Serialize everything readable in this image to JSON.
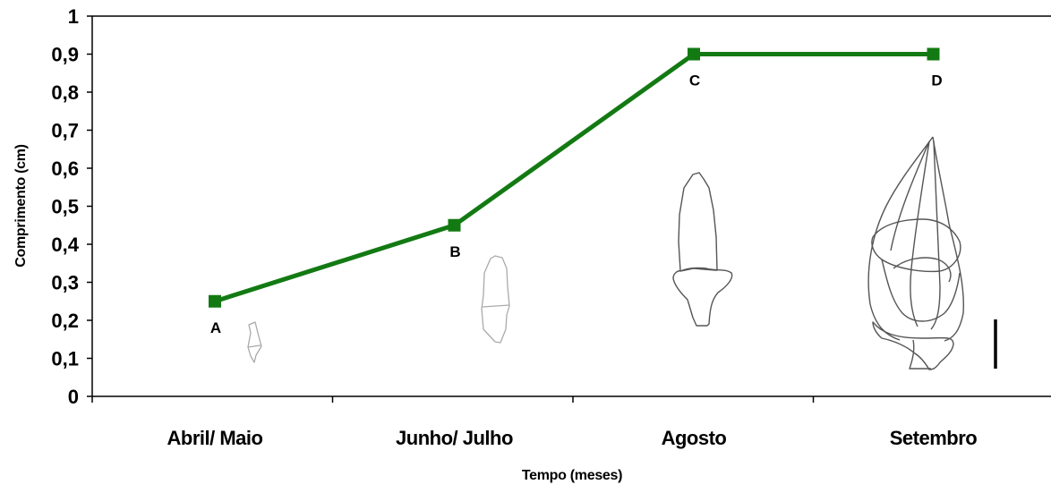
{
  "chart_data": {
    "type": "line",
    "categories": [
      "Abril/ Maio",
      "Junho/ Julho",
      "Agosto",
      "Setembro"
    ],
    "series": [
      {
        "values": [
          0.25,
          0.45,
          0.9,
          0.9
        ],
        "point_labels": [
          "A",
          "B",
          "C",
          "D"
        ]
      }
    ],
    "xlabel": "Tempo (meses)",
    "ylabel": "Comprimento (cm)",
    "ylim": [
      0,
      1
    ],
    "yticks": [
      0,
      0.1,
      0.2,
      0.3,
      0.4,
      0.5,
      0.6,
      0.7,
      0.8,
      0.9,
      1
    ],
    "ytick_labels": [
      "0",
      "0,1",
      "0,2",
      "0,3",
      "0,4",
      "0,5",
      "0,6",
      "0,7",
      "0,8",
      "0,9",
      "1"
    ],
    "grid": false,
    "line_color": "#137A13",
    "marker": "square",
    "illustrations": [
      "flower-bud-stage-a",
      "flower-bud-stage-b",
      "flower-bud-stage-c",
      "flower-bud-stage-d",
      "scale-bar"
    ]
  }
}
